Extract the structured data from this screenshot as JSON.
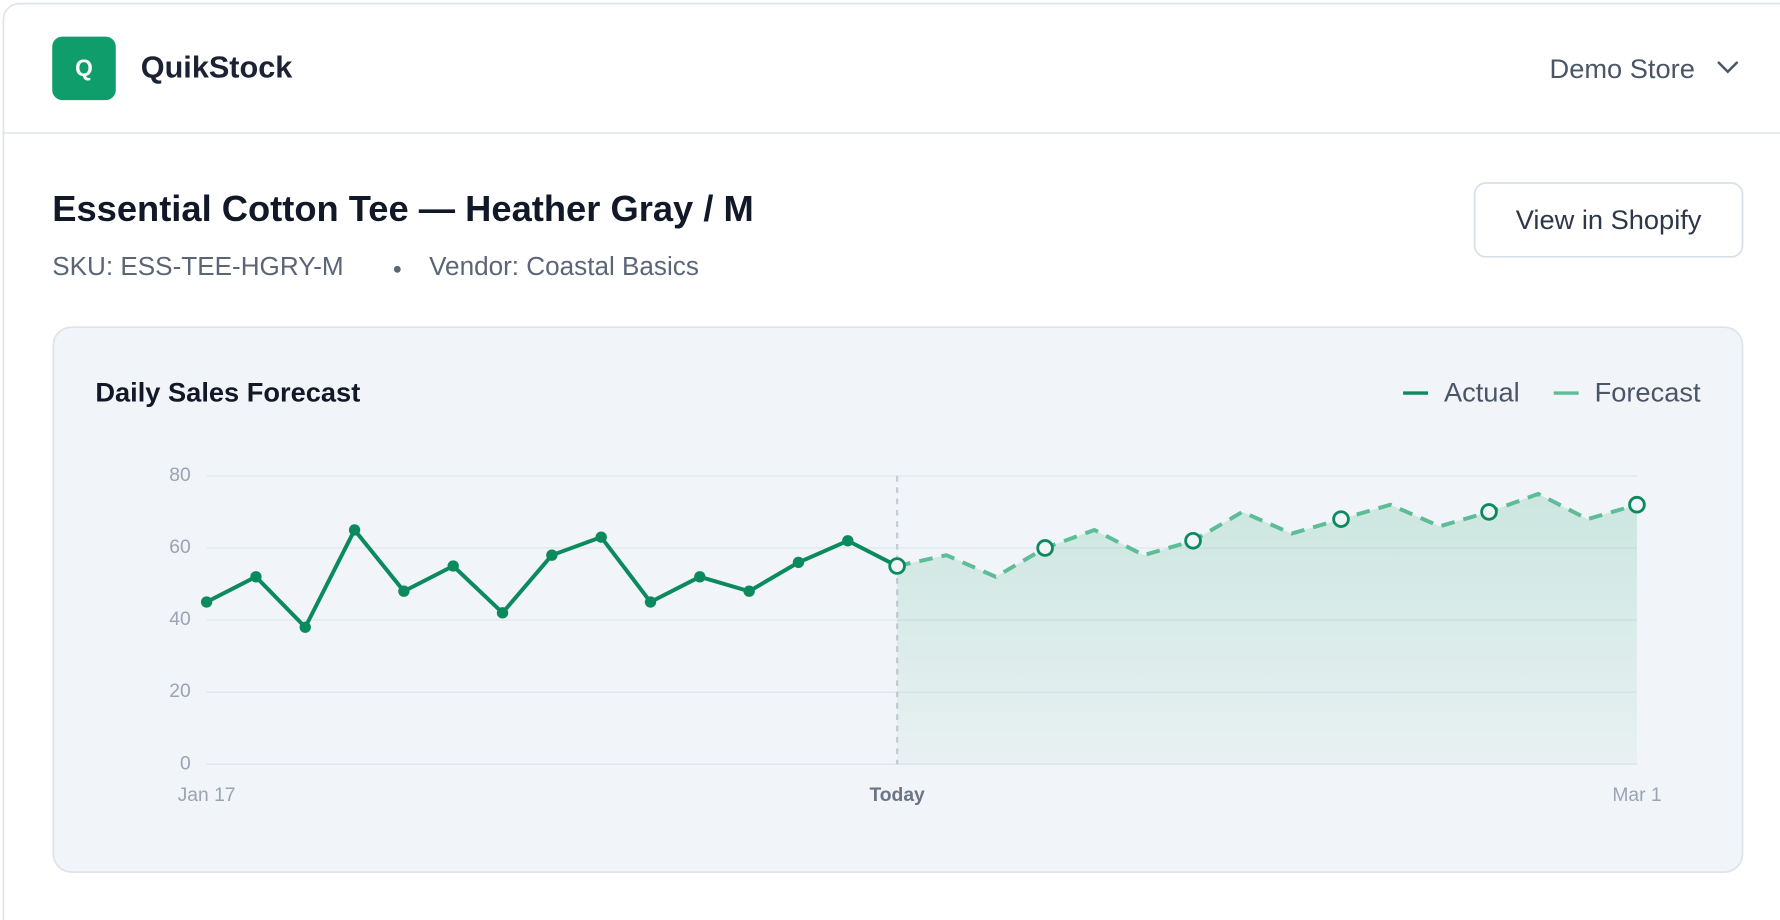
{
  "header": {
    "logo_letter": "Q",
    "brand": "QuikStock",
    "store": "Demo Store"
  },
  "product": {
    "title": "Essential Cotton Tee — Heather Gray / M",
    "sku": "SKU: ESS-TEE-HGRY-M",
    "vendor": "Vendor: Coastal Basics",
    "button": "View in Shopify"
  },
  "chart_data": {
    "type": "line",
    "title": "Daily Sales Forecast",
    "categories": [
      "Jan 17",
      null,
      null,
      null,
      null,
      null,
      null,
      null,
      null,
      null,
      null,
      null,
      null,
      null,
      "Today",
      null,
      null,
      null,
      null,
      null,
      null,
      null,
      null,
      null,
      null,
      null,
      null,
      null,
      null,
      "Mar 1"
    ],
    "series": [
      {
        "name": "Actual",
        "color": "#0b8a5e",
        "dashed": false,
        "values": [
          45,
          52,
          38,
          65,
          48,
          55,
          42,
          58,
          63,
          45,
          52,
          48,
          56,
          62,
          55,
          null,
          null,
          null,
          null,
          null,
          null,
          null,
          null,
          null,
          null,
          null,
          null,
          null,
          null,
          null
        ]
      },
      {
        "name": "Forecast",
        "color": "#5dbd96",
        "dashed": true,
        "values": [
          null,
          null,
          null,
          null,
          null,
          null,
          null,
          null,
          null,
          null,
          null,
          null,
          null,
          null,
          55,
          58,
          52,
          60,
          65,
          58,
          62,
          70,
          64,
          68,
          72,
          66,
          70,
          75,
          68,
          72
        ]
      }
    ],
    "ylim": [
      0,
      80
    ],
    "yticks": [
      0,
      20,
      40,
      60,
      80
    ],
    "grid": true
  }
}
